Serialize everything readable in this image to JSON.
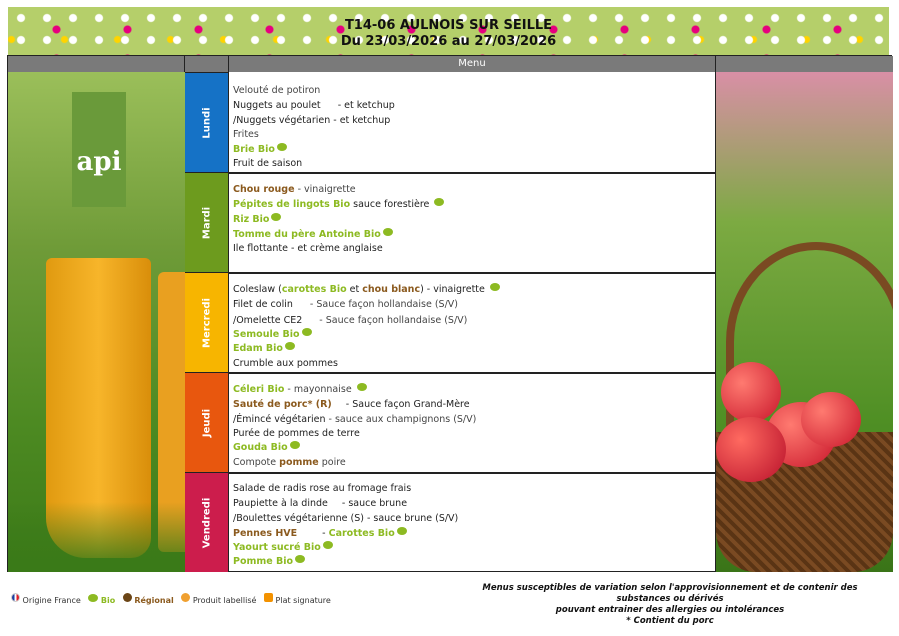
{
  "header": {
    "title": "T14-06 AULNOIS SUR SEILLE",
    "dates": "Du 23/03/2026 au 27/03/2026",
    "menu_label": "Menu"
  },
  "logo": {
    "text": "api",
    "color": "#6a9a3a"
  },
  "days": [
    {
      "name": "Lundi",
      "color": "#1572c6",
      "lines": [
        [
          {
            "t": "Velouté de potiron",
            "s": "grey"
          }
        ],
        [
          {
            "t": "Nuggets au poulet ",
            "s": ""
          },
          {
            "i": "fr"
          },
          {
            "t": " - et ketchup",
            "s": ""
          }
        ],
        [
          {
            "t": "/Nuggets végétarien - et ketchup",
            "s": ""
          }
        ],
        [
          {
            "t": "Frites",
            "s": "grey"
          }
        ],
        [
          {
            "t": "Brie Bio",
            "s": "bio"
          },
          {
            "i": "bio"
          },
          {
            "i": "reg"
          }
        ],
        [
          {
            "t": "Fruit de saison",
            "s": ""
          }
        ]
      ]
    },
    {
      "name": "Mardi",
      "color": "#6d9b1e",
      "lines": [
        [
          {
            "t": "Chou rouge",
            "s": "reg"
          },
          {
            "t": " - vinaigrette ",
            "s": "grey"
          },
          {
            "i": "reg"
          }
        ],
        [
          {
            "t": "Pépites de lingots Bio",
            "s": "bio"
          },
          {
            "t": " sauce forestière ",
            "s": ""
          },
          {
            "i": "bio"
          },
          {
            "i": "fr"
          }
        ],
        [
          {
            "t": "Riz Bio",
            "s": "bio"
          },
          {
            "i": "bio"
          }
        ],
        [
          {
            "t": "Tomme du père Antoine Bio",
            "s": "bio"
          },
          {
            "i": "bio"
          },
          {
            "i": "reg"
          }
        ],
        [
          {
            "t": "Ile flottante - et crème anglaise",
            "s": ""
          }
        ]
      ]
    },
    {
      "name": "Mercredi",
      "color": "#f7b500",
      "lines": [
        [
          {
            "t": "Coleslaw (",
            "s": ""
          },
          {
            "t": "carottes Bio",
            "s": "bio"
          },
          {
            "t": " et ",
            "s": ""
          },
          {
            "t": "chou blanc",
            "s": "reg"
          },
          {
            "t": ") - vinaigrette ",
            "s": ""
          },
          {
            "i": "bio"
          },
          {
            "i": "reg"
          }
        ],
        [
          {
            "t": "Filet de colin ",
            "s": ""
          },
          {
            "i": "lab"
          },
          {
            "t": " - Sauce façon hollandaise (S/V)",
            "s": "grey"
          }
        ],
        [
          {
            "t": "/Omelette CE2 ",
            "s": ""
          },
          {
            "i": "lab"
          },
          {
            "t": " - Sauce façon hollandaise (S/V)",
            "s": "grey"
          }
        ],
        [
          {
            "t": "Semoule Bio",
            "s": "bio"
          },
          {
            "i": "bio"
          }
        ],
        [
          {
            "t": "Edam Bio",
            "s": "bio"
          },
          {
            "i": "bio"
          }
        ],
        [
          {
            "t": "Crumble aux pommes",
            "s": ""
          },
          {
            "i": "sig"
          }
        ]
      ]
    },
    {
      "name": "Jeudi",
      "color": "#e8570e",
      "lines": [
        [
          {
            "t": "Céleri Bio",
            "s": "bio"
          },
          {
            "t": " - mayonnaise ",
            "s": "grey"
          },
          {
            "i": "bio"
          },
          {
            "i": "reg"
          }
        ],
        [
          {
            "t": "Sauté de porc* (R)",
            "s": "reg"
          },
          {
            "i": "reg"
          },
          {
            "t": " - Sauce façon Grand-Mère",
            "s": ""
          }
        ],
        [
          {
            "t": "/Émincé végétarien",
            "s": ""
          },
          {
            "t": " - sauce aux champignons (S/V)",
            "s": "grey"
          }
        ],
        [
          {
            "t": "Purée de pommes de terre",
            "s": ""
          }
        ],
        [
          {
            "t": "Gouda Bio",
            "s": "bio"
          },
          {
            "i": "bio"
          }
        ],
        [
          {
            "t": "Compote ",
            "s": "grey"
          },
          {
            "t": "pomme",
            "s": "reg"
          },
          {
            "t": " poire ",
            "s": "grey"
          },
          {
            "i": "reg"
          },
          {
            "i": "sig"
          }
        ]
      ]
    },
    {
      "name": "Vendredi",
      "color": "#cc1d4c",
      "lines": [
        [
          {
            "t": "Salade de radis rose au fromage frais",
            "s": ""
          }
        ],
        [
          {
            "t": "Paupiette à la dinde",
            "s": ""
          },
          {
            "i": "fr"
          },
          {
            "t": " - sauce brune",
            "s": ""
          }
        ],
        [
          {
            "t": "/Boulettes végétarienne (S) - sauce brune (S/V)",
            "s": ""
          }
        ],
        [
          {
            "t": "Pennes HVE",
            "s": "reg"
          },
          {
            "i": "reg"
          },
          {
            "i": "lab"
          },
          {
            "t": " - ",
            "s": ""
          },
          {
            "t": "Carottes Bio",
            "s": "bio"
          },
          {
            "i": "bio"
          }
        ],
        [
          {
            "t": "Yaourt sucré Bio",
            "s": "bio"
          },
          {
            "i": "bio"
          }
        ],
        [
          {
            "t": "Pomme Bio",
            "s": "bio"
          },
          {
            "i": "bio"
          }
        ]
      ]
    }
  ],
  "legend": {
    "origine_france": "Origine France",
    "bio": "Bio",
    "regional": "Régional",
    "produit_labellise": "Produit labellisé",
    "plat_signature": "Plat signature"
  },
  "notes": {
    "line1": "Menus susceptibles de variation selon l'approvisionnement et de contenir des substances ou dérivés",
    "line2": "pouvant entrainer des allergies ou intolérances",
    "line3": "* Contient du porc"
  }
}
